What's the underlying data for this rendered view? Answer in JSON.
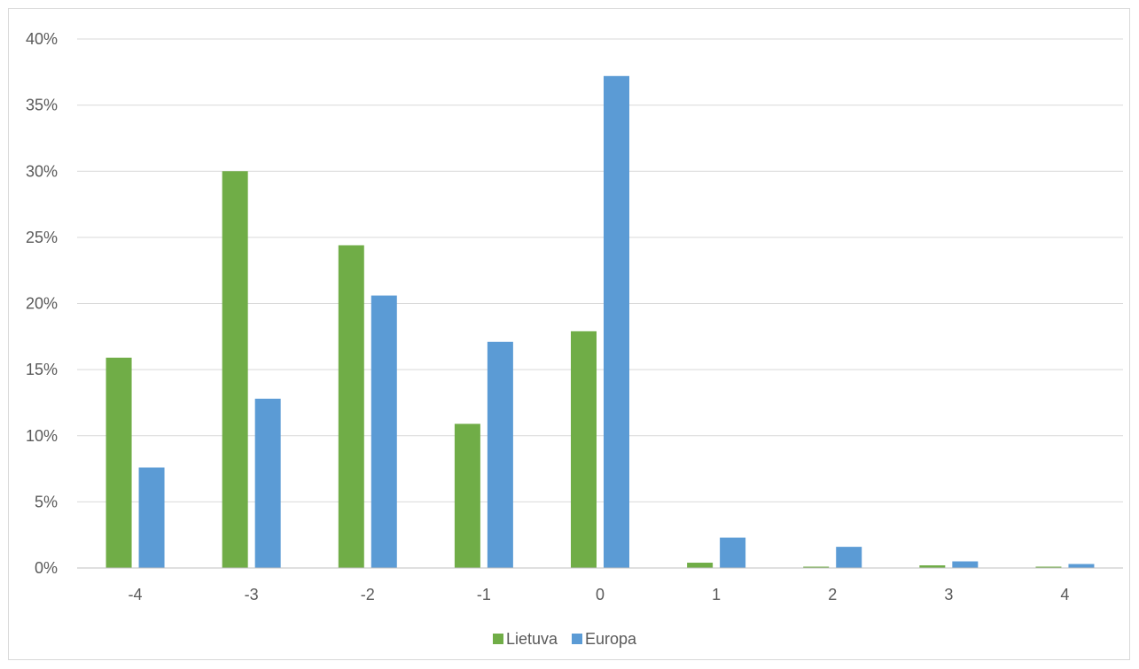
{
  "chart_data": {
    "type": "bar",
    "title": "",
    "xlabel": "",
    "ylabel": "",
    "categories": [
      "-4",
      "-3",
      "-2",
      "-1",
      "0",
      "1",
      "2",
      "3",
      "4"
    ],
    "series": [
      {
        "name": "Lietuva",
        "color": "#70ad47",
        "values": [
          15.9,
          30.0,
          24.4,
          10.9,
          17.9,
          0.4,
          0.1,
          0.2,
          0.1
        ]
      },
      {
        "name": "Europa",
        "color": "#5b9bd5",
        "values": [
          7.6,
          12.8,
          20.6,
          17.1,
          37.2,
          2.3,
          1.6,
          0.5,
          0.3
        ]
      }
    ],
    "ylim": [
      0,
      40
    ],
    "yticks": [
      0,
      5,
      10,
      15,
      20,
      25,
      30,
      35,
      40
    ],
    "ytick_labels": [
      "0%",
      "5%",
      "10%",
      "15%",
      "20%",
      "25%",
      "30%",
      "35%",
      "40%"
    ],
    "grid": true,
    "legend_position": "bottom"
  }
}
